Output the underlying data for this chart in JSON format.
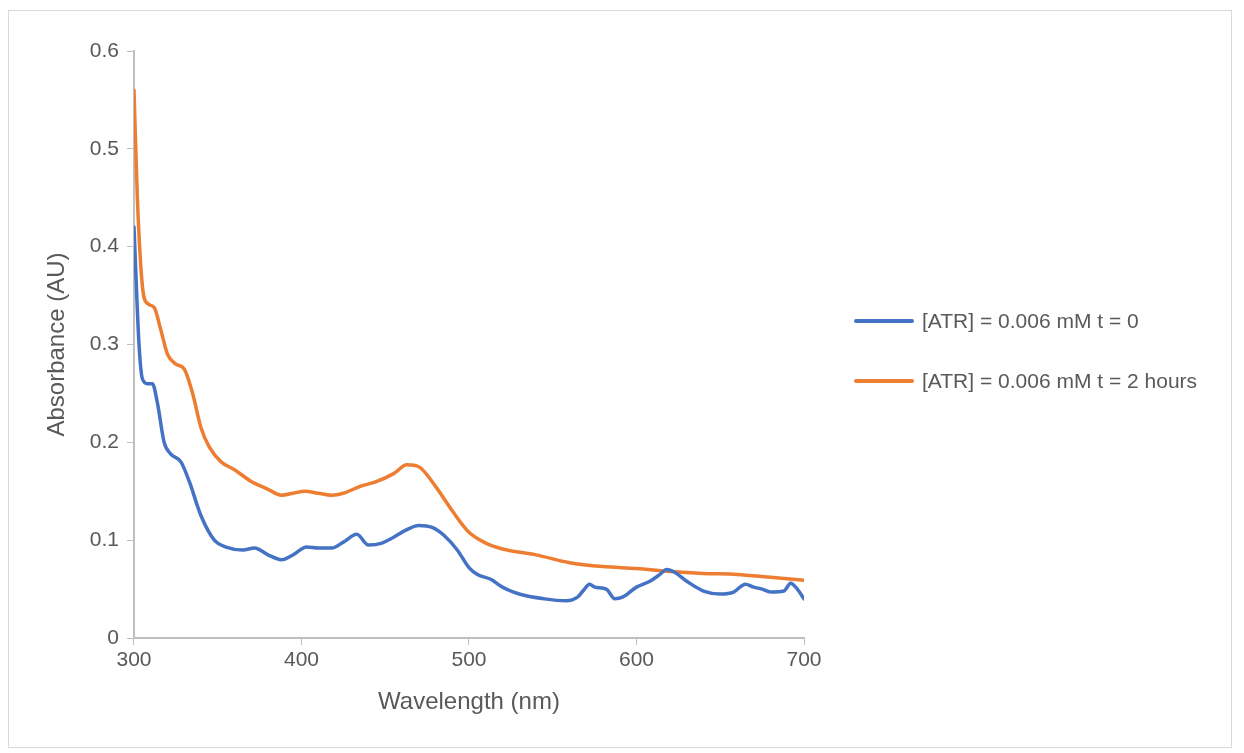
{
  "chart_data": {
    "type": "line",
    "xlabel": "Wavelength (nm)",
    "ylabel": "Absorbance (AU)",
    "xlim": [
      300,
      700
    ],
    "xticks": [
      300,
      400,
      500,
      600,
      700
    ],
    "ylim": [
      0,
      0.6
    ],
    "yticks": [
      0,
      0.1,
      0.2,
      0.3,
      0.4,
      0.5,
      0.6
    ],
    "grid": false,
    "legend": "right",
    "marker": "none",
    "line_style": "solid",
    "series": [
      {
        "name": "[ATR] = 0.006 mM t = 0",
        "color": "#4472c4",
        "x": [
          300,
          303,
          305,
          308,
          311,
          314,
          318,
          322,
          328,
          333,
          340,
          348,
          355,
          365,
          372,
          380,
          388,
          395,
          403,
          410,
          418,
          425,
          433,
          440,
          448,
          455,
          462,
          470,
          478,
          485,
          493,
          500,
          505,
          513,
          520,
          530,
          545,
          558,
          565,
          568,
          572,
          575,
          582,
          587,
          592,
          600,
          608,
          614,
          618,
          623,
          630,
          640,
          650,
          658,
          665,
          670,
          675,
          680,
          688,
          692,
          696,
          700
        ],
        "values": [
          0.42,
          0.3,
          0.265,
          0.26,
          0.26,
          0.24,
          0.2,
          0.188,
          0.18,
          0.16,
          0.125,
          0.1,
          0.093,
          0.09,
          0.092,
          0.085,
          0.08,
          0.085,
          0.093,
          0.092,
          0.092,
          0.098,
          0.106,
          0.095,
          0.097,
          0.103,
          0.11,
          0.115,
          0.113,
          0.105,
          0.09,
          0.072,
          0.065,
          0.06,
          0.052,
          0.045,
          0.04,
          0.038,
          0.042,
          0.048,
          0.055,
          0.052,
          0.05,
          0.04,
          0.042,
          0.052,
          0.058,
          0.065,
          0.07,
          0.067,
          0.058,
          0.048,
          0.045,
          0.047,
          0.055,
          0.052,
          0.05,
          0.047,
          0.048,
          0.056,
          0.05,
          0.04
        ]
      },
      {
        "name": "[ATR] = 0.006 mM t = 2 hours",
        "color": "#ed7d31",
        "x": [
          300,
          302,
          305,
          308,
          312,
          316,
          320,
          325,
          330,
          335,
          340,
          345,
          352,
          360,
          370,
          380,
          388,
          395,
          402,
          410,
          418,
          425,
          435,
          445,
          455,
          463,
          470,
          480,
          490,
          500,
          510,
          520,
          540,
          560,
          580,
          600,
          620,
          640,
          660,
          680,
          700
        ],
        "values": [
          0.56,
          0.45,
          0.36,
          0.342,
          0.338,
          0.315,
          0.29,
          0.28,
          0.275,
          0.25,
          0.215,
          0.195,
          0.18,
          0.172,
          0.16,
          0.152,
          0.146,
          0.148,
          0.15,
          0.148,
          0.146,
          0.148,
          0.155,
          0.16,
          0.168,
          0.177,
          0.175,
          0.155,
          0.13,
          0.108,
          0.097,
          0.091,
          0.085,
          0.077,
          0.073,
          0.071,
          0.068,
          0.066,
          0.065,
          0.062,
          0.059
        ]
      }
    ]
  }
}
